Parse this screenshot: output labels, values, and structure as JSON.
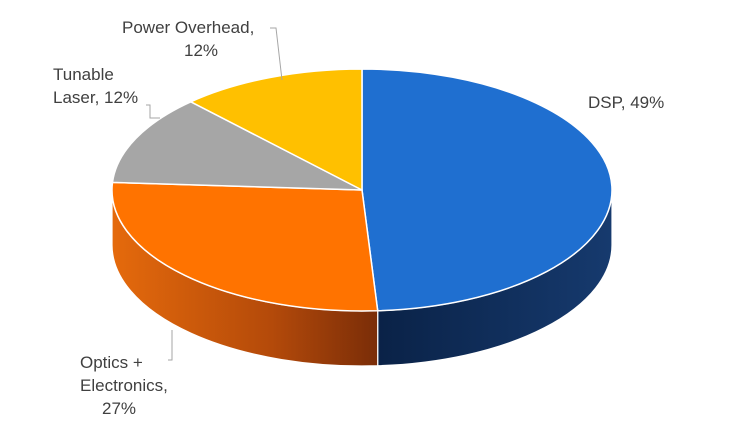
{
  "chart_data": {
    "type": "pie",
    "style": "3d",
    "title": "",
    "slices": [
      {
        "label": "DSP",
        "value": 49,
        "color": "#1f6fd0",
        "side_color": "#0d2a55"
      },
      {
        "label": "Optics + Electronics",
        "value": 27,
        "color": "#ff7300",
        "side_color": "#a04008"
      },
      {
        "label": "Tunable Laser",
        "value": 12,
        "color": "#a6a6a6",
        "side_color": "#6e6e6e"
      },
      {
        "label": "Power Overhead",
        "value": 12,
        "color": "#ffc000",
        "side_color": "#b08400"
      }
    ],
    "data_labels": [
      {
        "lines": [
          "DSP, 49%"
        ]
      },
      {
        "lines": [
          "Optics +",
          "Electronics,",
          "27%"
        ]
      },
      {
        "lines": [
          "Tunable",
          "Laser, 12%"
        ]
      },
      {
        "lines": [
          "Power Overhead,",
          "12%"
        ]
      }
    ]
  }
}
